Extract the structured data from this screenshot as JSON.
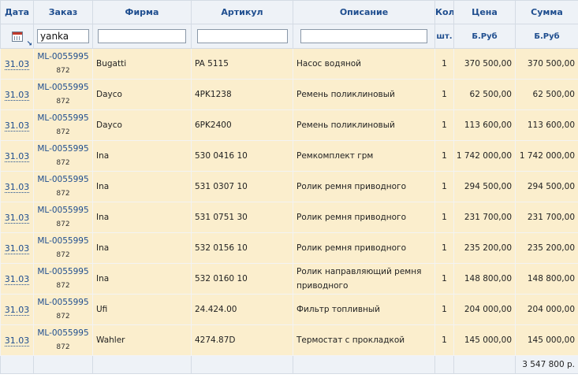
{
  "columns": {
    "date": "Дата",
    "order": "Заказ",
    "firm": "Фирма",
    "article": "Артикул",
    "description": "Описание",
    "qty": "Кол",
    "price": "Цена",
    "sum": "Сумма"
  },
  "filters": {
    "order_value": "yanka",
    "firm_value": "",
    "article_value": "",
    "description_value": "",
    "qty_unit": "шт.",
    "price_unit": "Б.Руб",
    "sum_unit": "Б.Руб",
    "date_icon": "calendar-icon",
    "sort_icon": "sort-arrow-icon"
  },
  "rows": [
    {
      "date": "31.03",
      "order": "ML-0055995",
      "order_sub": "872",
      "firm": "Bugatti",
      "article": "PA 5115",
      "description": "Насос водяной",
      "qty": "1",
      "price": "370 500,00",
      "sum": "370 500,00"
    },
    {
      "date": "31.03",
      "order": "ML-0055995",
      "order_sub": "872",
      "firm": "Dayco",
      "article": "4PK1238",
      "description": "Ремень поликлиновый",
      "qty": "1",
      "price": "62 500,00",
      "sum": "62 500,00"
    },
    {
      "date": "31.03",
      "order": "ML-0055995",
      "order_sub": "872",
      "firm": "Dayco",
      "article": "6PK2400",
      "description": "Ремень поликлиновый",
      "qty": "1",
      "price": "113 600,00",
      "sum": "113 600,00"
    },
    {
      "date": "31.03",
      "order": "ML-0055995",
      "order_sub": "872",
      "firm": "Ina",
      "article": "530 0416 10",
      "description": "Ремкомплект грм",
      "qty": "1",
      "price": "1 742 000,00",
      "sum": "1 742 000,00"
    },
    {
      "date": "31.03",
      "order": "ML-0055995",
      "order_sub": "872",
      "firm": "Ina",
      "article": "531 0307 10",
      "description": "Ролик ремня приводного",
      "qty": "1",
      "price": "294 500,00",
      "sum": "294 500,00"
    },
    {
      "date": "31.03",
      "order": "ML-0055995",
      "order_sub": "872",
      "firm": "Ina",
      "article": "531 0751 30",
      "description": "Ролик ремня приводного",
      "qty": "1",
      "price": "231 700,00",
      "sum": "231 700,00"
    },
    {
      "date": "31.03",
      "order": "ML-0055995",
      "order_sub": "872",
      "firm": "Ina",
      "article": "532 0156 10",
      "description": "Ролик ремня приводного",
      "qty": "1",
      "price": "235 200,00",
      "sum": "235 200,00"
    },
    {
      "date": "31.03",
      "order": "ML-0055995",
      "order_sub": "872",
      "firm": "Ina",
      "article": "532 0160 10",
      "description": "Ролик направляющий ремня приводного",
      "qty": "1",
      "price": "148 800,00",
      "sum": "148 800,00"
    },
    {
      "date": "31.03",
      "order": "ML-0055995",
      "order_sub": "872",
      "firm": "Ufi",
      "article": "24.424.00",
      "description": "Фильтр топливный",
      "qty": "1",
      "price": "204 000,00",
      "sum": "204 000,00"
    },
    {
      "date": "31.03",
      "order": "ML-0055995",
      "order_sub": "872",
      "firm": "Wahler",
      "article": "4274.87D",
      "description": "Термостат с прокладкой",
      "qty": "1",
      "price": "145 000,00",
      "sum": "145 000,00"
    }
  ],
  "total": "3 547 800 р."
}
